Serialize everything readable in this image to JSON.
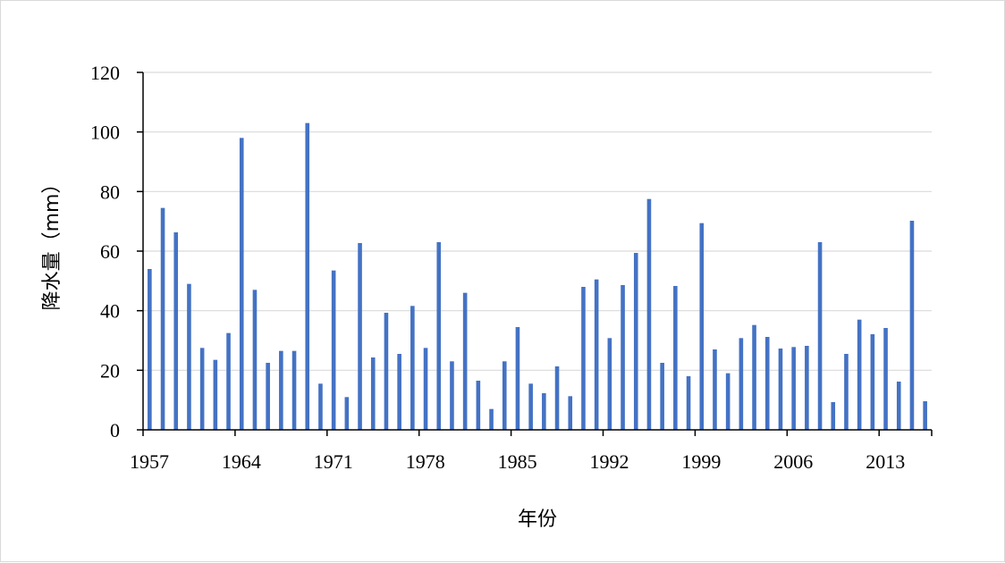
{
  "chart_data": {
    "type": "bar",
    "title": "",
    "xlabel": "年份",
    "ylabel": "降水量（mm）",
    "ylim": [
      0,
      120
    ],
    "yticks": [
      0,
      20,
      40,
      60,
      80,
      100,
      120
    ],
    "xtick_labels": [
      "1957",
      "1964",
      "1971",
      "1978",
      "1985",
      "1992",
      "1999",
      "2006",
      "2013"
    ],
    "grid": "horizontal",
    "legend": "none",
    "bar_color": "#4472C4",
    "categories": [
      "1957",
      "1958",
      "1959",
      "1960",
      "1961",
      "1962",
      "1963",
      "1964",
      "1965",
      "1966",
      "1967",
      "1968",
      "1969",
      "1970",
      "1971",
      "1972",
      "1973",
      "1974",
      "1975",
      "1976",
      "1977",
      "1978",
      "1979",
      "1980",
      "1981",
      "1982",
      "1983",
      "1984",
      "1985",
      "1986",
      "1987",
      "1988",
      "1989",
      "1990",
      "1991",
      "1992",
      "1993",
      "1994",
      "1995",
      "1996",
      "1997",
      "1998",
      "1999",
      "2000",
      "2001",
      "2002",
      "2003",
      "2004",
      "2005",
      "2006",
      "2007",
      "2008",
      "2009",
      "2010",
      "2011",
      "2012",
      "2013",
      "2014",
      "2015",
      "2016"
    ],
    "values": [
      54,
      74.5,
      66.3,
      49,
      27.5,
      23.5,
      32.5,
      98,
      47,
      22.5,
      26.5,
      26.5,
      103,
      15.5,
      53.5,
      11,
      62.7,
      24.3,
      39.3,
      25.5,
      41.6,
      27.5,
      63,
      23,
      46,
      16.5,
      7,
      23,
      34.5,
      15.5,
      12.3,
      21.3,
      11.3,
      48,
      50.5,
      30.8,
      48.6,
      59.4,
      77.5,
      22.5,
      48.3,
      18,
      69.4,
      27,
      19,
      30.8,
      35.2,
      31.2,
      27.3,
      27.8,
      28.2,
      63,
      9.3,
      25.5,
      37,
      32.1,
      34.2,
      16.2,
      70.2,
      9.6
    ]
  }
}
